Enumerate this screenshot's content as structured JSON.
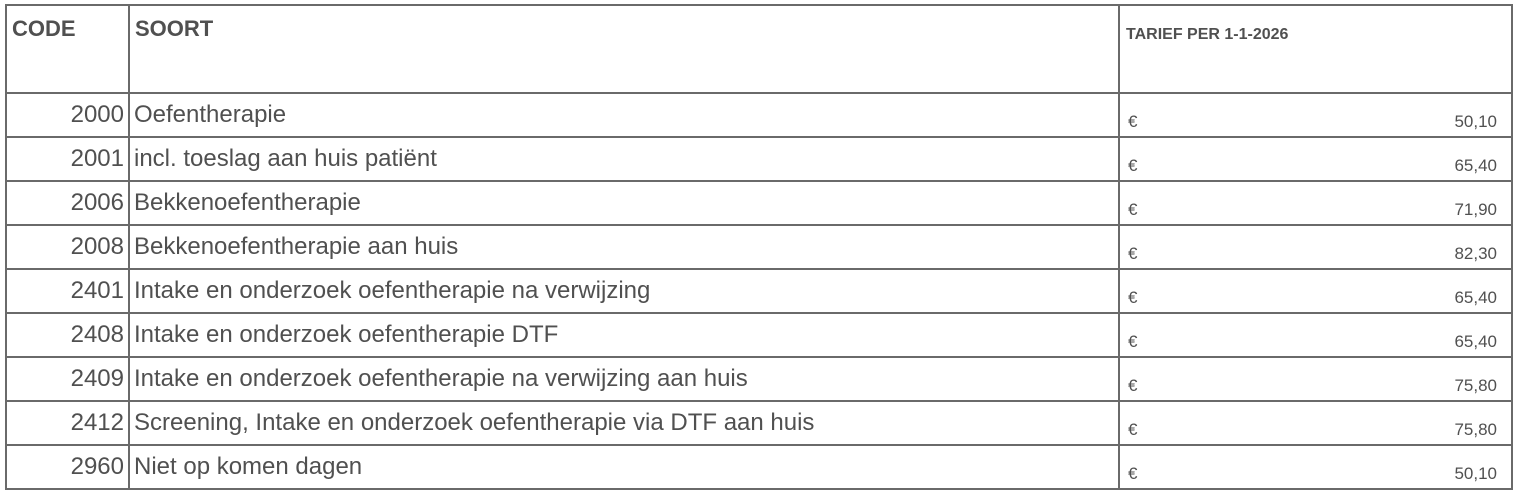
{
  "headers": {
    "code": "CODE",
    "soort": "SOORT",
    "tarief": "TARIEF PER 1-1-2026"
  },
  "currency_symbol": "€",
  "rows": [
    {
      "code": "2000",
      "soort": "Oefentherapie",
      "tarief": "50,10"
    },
    {
      "code": "2001",
      "soort": "incl. toeslag aan huis patiënt",
      "tarief": "65,40"
    },
    {
      "code": "2006",
      "soort": "Bekkenoefentherapie",
      "tarief": "71,90"
    },
    {
      "code": "2008",
      "soort": "Bekkenoefentherapie aan huis",
      "tarief": "82,30"
    },
    {
      "code": "2401",
      "soort": "Intake en onderzoek oefentherapie na verwijzing",
      "tarief": "65,40"
    },
    {
      "code": "2408",
      "soort": "Intake en onderzoek oefentherapie DTF",
      "tarief": "65,40"
    },
    {
      "code": "2409",
      "soort": "Intake en onderzoek oefentherapie na verwijzing aan huis",
      "tarief": "75,80"
    },
    {
      "code": "2412",
      "soort": "Screening, Intake en onderzoek oefentherapie via DTF aan huis",
      "tarief": "75,80"
    },
    {
      "code": "2960",
      "soort": "Niet op komen dagen",
      "tarief": "50,10"
    }
  ]
}
